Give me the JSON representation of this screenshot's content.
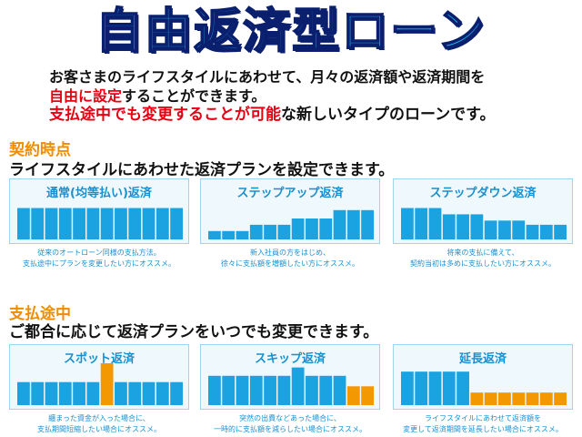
{
  "title": "自由返済型ローン",
  "intro": {
    "line1": "お客さまのライフスタイルにあわせて、月々の返済額や返済期間を",
    "line2_red": "自由に設定",
    "line2_rest": "することができます。",
    "line3_red": "支払途中でも変更することが可能",
    "line3_rest": "な新しいタイプのローンです。"
  },
  "contract": {
    "heading": "契約時点",
    "subheading": "ライフスタイルにあわせた返済プランを設定できます。",
    "panels": [
      {
        "title": "通常(均等払い)返済",
        "desc1": "従来のオートローン同様の支払方法。",
        "desc2": "支払途中にプランを変更したい方にオススメ。",
        "bars": [
          0.75,
          0.75,
          0.75,
          0.75,
          0.75,
          0.75,
          0.75,
          0.75,
          0.75,
          0.75,
          0.75,
          0.75
        ],
        "colors": [
          "#1aa3e0",
          "#1aa3e0",
          "#1aa3e0",
          "#1aa3e0",
          "#1aa3e0",
          "#1aa3e0",
          "#1aa3e0",
          "#1aa3e0",
          "#1aa3e0",
          "#1aa3e0",
          "#1aa3e0",
          "#1aa3e0"
        ]
      },
      {
        "title": "ステップアップ返済",
        "desc1": "新入社員の方をはじめ、",
        "desc2": "徐々に支払額を増額したい方にオススメ。",
        "bars": [
          0.2,
          0.2,
          0.2,
          0.35,
          0.35,
          0.35,
          0.5,
          0.5,
          0.5,
          0.7,
          0.7,
          0.7
        ],
        "colors": [
          "#1aa3e0",
          "#1aa3e0",
          "#1aa3e0",
          "#1aa3e0",
          "#1aa3e0",
          "#1aa3e0",
          "#1aa3e0",
          "#1aa3e0",
          "#1aa3e0",
          "#1aa3e0",
          "#1aa3e0",
          "#1aa3e0"
        ]
      },
      {
        "title": "ステップダウン返済",
        "desc1": "将来の支払に備えて、",
        "desc2": "契約当初は多めに支払したい方にオススメ。",
        "bars": [
          0.75,
          0.75,
          0.75,
          0.6,
          0.6,
          0.6,
          0.45,
          0.45,
          0.45,
          0.35,
          0.35,
          0.35
        ],
        "colors": [
          "#1aa3e0",
          "#1aa3e0",
          "#1aa3e0",
          "#1aa3e0",
          "#1aa3e0",
          "#1aa3e0",
          "#1aa3e0",
          "#1aa3e0",
          "#1aa3e0",
          "#1aa3e0",
          "#1aa3e0",
          "#1aa3e0"
        ]
      }
    ]
  },
  "midway": {
    "heading": "支払途中",
    "subheading": "ご都合に応じて返済プランをいつでも変更できます。",
    "panels": [
      {
        "title": "スポット返済",
        "desc1": "纏まった資金が入った場合に、",
        "desc2": "支払期間短縮したい場合にオススメ。",
        "bars": [
          0.55,
          0.55,
          0.55,
          0.55,
          0.55,
          0.55,
          1.0,
          0.55,
          0.55,
          0.55,
          0.55,
          0.55
        ],
        "colors": [
          "#1aa3e0",
          "#1aa3e0",
          "#1aa3e0",
          "#1aa3e0",
          "#1aa3e0",
          "#1aa3e0",
          "#f39800",
          "#1aa3e0",
          "#1aa3e0",
          "#1aa3e0",
          "#1aa3e0",
          "#1aa3e0"
        ]
      },
      {
        "title": "スキップ返済",
        "desc1": "突然の出費などあった場合に、",
        "desc2": "一時的に支払額を減らしたい場合にオススメ。",
        "bars": [
          0.7,
          0.7,
          0.7,
          0.7,
          0.7,
          0.7,
          0.9,
          0.7,
          0.7,
          0.7,
          0.45,
          0.45
        ],
        "colors": [
          "#1aa3e0",
          "#1aa3e0",
          "#1aa3e0",
          "#1aa3e0",
          "#1aa3e0",
          "#1aa3e0",
          "#1aa3e0",
          "#1aa3e0",
          "#1aa3e0",
          "#1aa3e0",
          "#f39800",
          "#f39800"
        ]
      },
      {
        "title": "延長返済",
        "desc1": "ライフスタイルにあわせて返済額を",
        "desc2": "変更して返済期間を延長したい場合にオススメ。",
        "bars": [
          0.8,
          0.8,
          0.8,
          0.8,
          0.8,
          0.3,
          0.3,
          0.3,
          0.3,
          0.3,
          0.3,
          0.3
        ],
        "colors": [
          "#1aa3e0",
          "#1aa3e0",
          "#1aa3e0",
          "#1aa3e0",
          "#1aa3e0",
          "#f39800",
          "#f39800",
          "#f39800",
          "#f39800",
          "#f39800",
          "#f39800",
          "#f39800"
        ]
      }
    ]
  }
}
